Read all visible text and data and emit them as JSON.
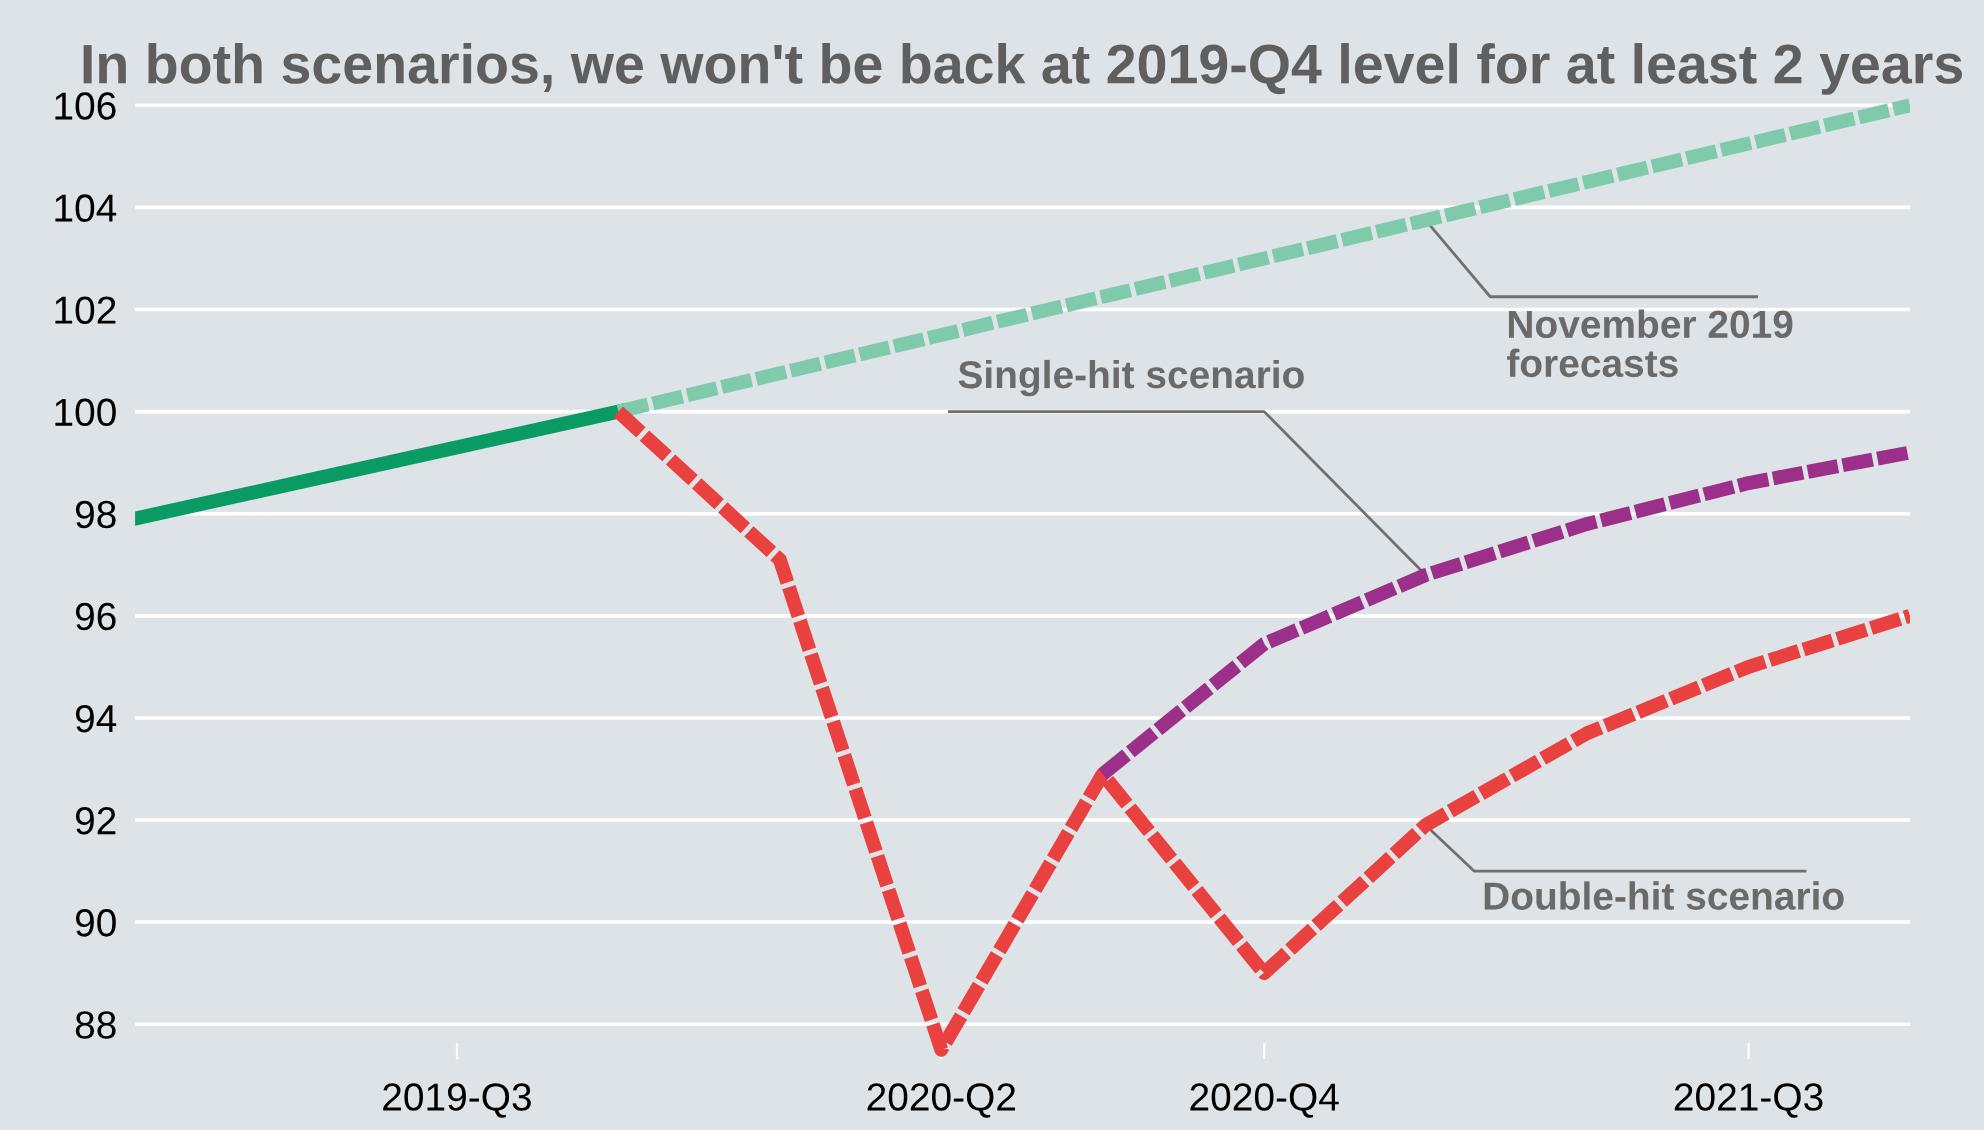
{
  "chart_data": {
    "type": "line",
    "title": "In both scenarios, we won't be back at 2019-Q4 level for at least 2 years",
    "categories": [
      null,
      null,
      "2019-Q3",
      null,
      null,
      "2020-Q2",
      null,
      "2020-Q4",
      null,
      null,
      "2021-Q3",
      null
    ],
    "ylim": [
      87.3,
      106.3
    ],
    "yticks": [
      88,
      90,
      92,
      94,
      96,
      98,
      100,
      102,
      104,
      106
    ],
    "grid": "y",
    "legend": false,
    "series": [
      {
        "color": "#0a9a63",
        "line_style": "solid",
        "values": [
          97.9,
          98.6,
          99.3,
          100.0,
          null,
          null,
          null,
          null,
          null,
          null,
          null,
          null
        ]
      },
      {
        "name": "November 2019\nforecasts",
        "color": "#7ecaaa",
        "line_style": "dashed",
        "values": [
          null,
          null,
          null,
          100.0,
          100.75,
          101.5,
          102.25,
          103.0,
          103.75,
          104.5,
          105.25,
          106.0
        ]
      },
      {
        "name": "Double-hit scenario",
        "color": "#e8413f",
        "line_style": "dashed",
        "values": [
          null,
          null,
          null,
          100.0,
          97.1,
          87.5,
          92.9,
          89.0,
          91.9,
          93.7,
          95.0,
          96.0
        ]
      },
      {
        "name": "Single-hit scenario",
        "color": "#9b2f8a",
        "line_style": "dashed",
        "values": [
          null,
          null,
          null,
          null,
          null,
          null,
          92.9,
          95.45,
          96.8,
          97.8,
          98.6,
          99.2
        ]
      }
    ]
  }
}
